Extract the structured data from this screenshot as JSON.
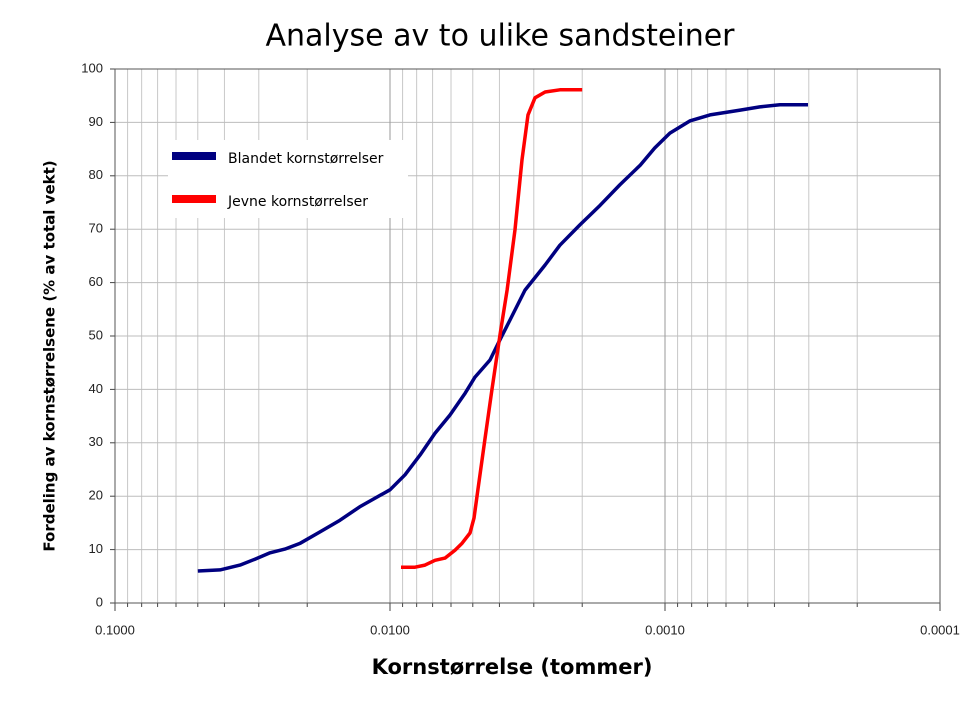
{
  "chart_data": {
    "type": "line",
    "title": "Analyse av to ulike sandsteiner",
    "x_label": "Kornstørrelse (tommer)",
    "y_label": "Fordeling av kornstørrelsene (% av total vekt)",
    "x_scale": "log",
    "x_reversed": true,
    "grid": true,
    "legend": "upper left",
    "xlim": [
      0.1,
      0.0001
    ],
    "xticks": [
      {
        "value": 0.1,
        "label": "0.1000"
      },
      {
        "value": 0.01,
        "label": "0.0100"
      },
      {
        "value": 0.001,
        "label": "0.0010"
      },
      {
        "value": 0.0001,
        "label": "0.0001"
      }
    ],
    "ylim": [
      0,
      100
    ],
    "yticks": [
      0,
      10,
      20,
      30,
      40,
      50,
      60,
      70,
      80,
      90,
      100
    ],
    "series": [
      {
        "name": "Blandet kornstørrelser",
        "color": "#000080",
        "x": [
          0.05,
          0.0415,
          0.0351,
          0.031,
          0.0273,
          0.0241,
          0.0212,
          0.018,
          0.0152,
          0.0129,
          0.01,
          0.00882,
          0.00778,
          0.00686,
          0.00605,
          0.00533,
          0.00491,
          0.00433,
          0.00398,
          0.00366,
          0.00323,
          0.00273,
          0.00241,
          0.00204,
          0.00172,
          0.00146,
          0.00123,
          0.00109,
          0.00096,
          0.00081,
          0.000686,
          0.000533,
          0.000452,
          0.000382,
          0.000302
        ],
        "values": [
          6,
          6.2,
          7.1,
          8.2,
          9.4,
          10.1,
          11.2,
          13.3,
          15.5,
          18,
          21.2,
          24,
          27.7,
          31.8,
          35.2,
          39.3,
          42.3,
          45.5,
          49.3,
          53,
          58.6,
          63.3,
          67,
          70.8,
          74.5,
          78.3,
          82,
          85.2,
          88,
          90.3,
          91.4,
          92.3,
          92.9,
          93.3,
          93.3
        ]
      },
      {
        "name": "Jevne kornstørrelser",
        "color": "#ff0000",
        "x": [
          0.00912,
          0.00811,
          0.00746,
          0.00686,
          0.00631,
          0.0058,
          0.00547,
          0.00512,
          0.00495,
          0.00479,
          0.00452,
          0.00426,
          0.00398,
          0.00375,
          0.00351,
          0.00331,
          0.00315,
          0.00297,
          0.00273,
          0.00241,
          0.002
        ],
        "values": [
          6.7,
          6.7,
          7.1,
          8,
          8.4,
          9.9,
          11.2,
          13.1,
          15.9,
          21.2,
          30.5,
          39.9,
          50.2,
          58.6,
          69.9,
          83,
          91.4,
          94.6,
          95.7,
          96.1,
          96.1
        ]
      }
    ]
  }
}
